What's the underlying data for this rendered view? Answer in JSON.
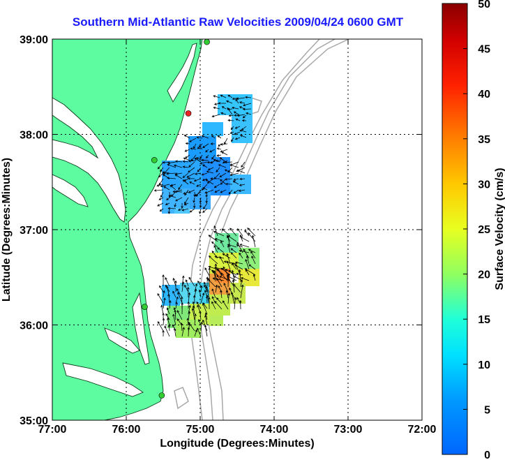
{
  "title": "Southern Mid-Atlantic Raw Velocities 2009/04/24 0600 GMT",
  "map": {
    "xlabel": "Longitude (Degrees:Minutes)",
    "ylabel": "Latitude (Degrees:Minutes)",
    "x_ticks": [
      "77:00",
      "76:00",
      "75:00",
      "74:00",
      "73:00",
      "72:00"
    ],
    "y_ticks": [
      "39:00",
      "38:00",
      "37:00",
      "36:00",
      "35:00"
    ],
    "lon_range": [
      -77,
      -72
    ],
    "lat_range": [
      35,
      39
    ],
    "land_color": "#5efca0",
    "grid": "dotted"
  },
  "colorbar": {
    "label": "Surface Velocity (cm/s)",
    "ticks": [
      "50",
      "45",
      "40",
      "35",
      "30",
      "25",
      "20",
      "15",
      "10",
      "5",
      "0"
    ],
    "range": [
      0,
      50
    ]
  },
  "stations": [
    {
      "lon": -74.91,
      "lat": 38.97,
      "color": "#33cc33"
    },
    {
      "lon": -75.16,
      "lat": 38.22,
      "color": "#ee2222"
    },
    {
      "lon": -75.62,
      "lat": 37.73,
      "color": "#33cc33"
    },
    {
      "lon": -75.75,
      "lat": 36.19,
      "color": "#33cc33"
    },
    {
      "lon": -75.52,
      "lat": 35.26,
      "color": "#33cc33"
    }
  ]
}
